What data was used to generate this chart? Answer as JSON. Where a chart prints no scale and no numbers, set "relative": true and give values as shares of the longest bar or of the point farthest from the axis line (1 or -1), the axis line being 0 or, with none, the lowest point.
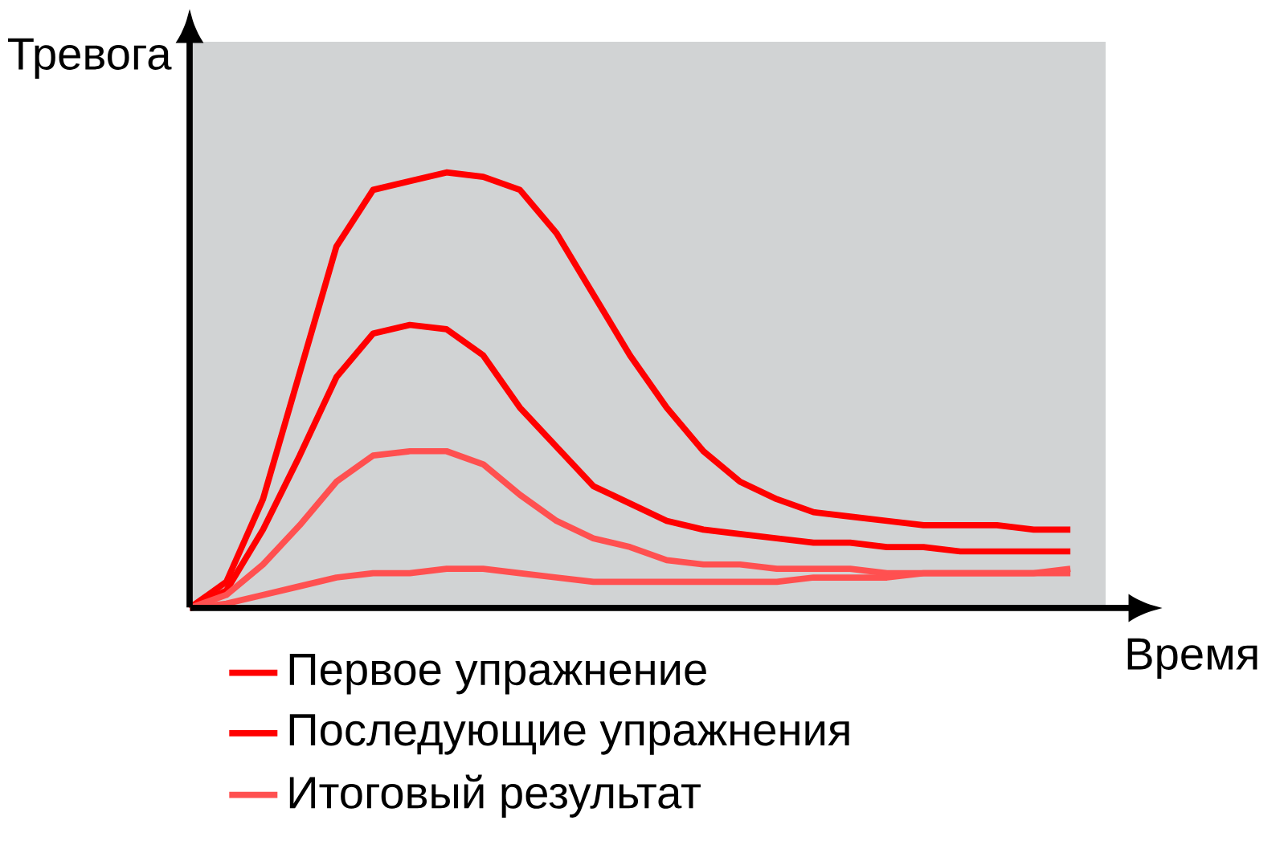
{
  "chart_data": {
    "type": "line",
    "relative": true,
    "xlabel": "Время",
    "ylabel": "Тревога",
    "legend": "bottom left",
    "marker": "none",
    "line_style": "solid",
    "categories": [
      null,
      null,
      null,
      null,
      null,
      null,
      null,
      null,
      null,
      null,
      null,
      null,
      null,
      null,
      null,
      null,
      null,
      null,
      null,
      null,
      null,
      null,
      null,
      null,
      null
    ],
    "series": [
      {
        "name": "Первое упражнение",
        "color": "#ff0000",
        "values": [
          0,
          0.06,
          0.25,
          0.54,
          0.83,
          0.96,
          0.98,
          1.0,
          0.99,
          0.96,
          0.86,
          0.72,
          0.58,
          0.46,
          0.36,
          0.29,
          0.25,
          0.22,
          0.21,
          0.2,
          0.19,
          0.19,
          0.19,
          0.18,
          0.18
        ]
      },
      {
        "name": "Последующие упражнения",
        "color": "#ff0000",
        "values": [
          0,
          0.04,
          0.18,
          0.35,
          0.53,
          0.63,
          0.65,
          0.64,
          0.58,
          0.46,
          0.37,
          0.28,
          0.24,
          0.2,
          0.18,
          0.17,
          0.16,
          0.15,
          0.15,
          0.14,
          0.14,
          0.13,
          0.13,
          0.13,
          0.13
        ]
      },
      {
        "color": "#ff5050",
        "values": [
          0,
          0.03,
          0.1,
          0.19,
          0.29,
          0.35,
          0.36,
          0.36,
          0.33,
          0.26,
          0.2,
          0.16,
          0.14,
          0.11,
          0.1,
          0.1,
          0.09,
          0.09,
          0.09,
          0.08,
          0.08,
          0.08,
          0.08,
          0.08,
          0.08
        ]
      },
      {
        "name": "Итоговый результат",
        "color": "#ff5050",
        "values": [
          0,
          0.01,
          0.03,
          0.05,
          0.07,
          0.08,
          0.08,
          0.09,
          0.09,
          0.08,
          0.07,
          0.06,
          0.06,
          0.06,
          0.06,
          0.06,
          0.06,
          0.07,
          0.07,
          0.07,
          0.08,
          0.08,
          0.08,
          0.08,
          0.09
        ]
      }
    ]
  }
}
